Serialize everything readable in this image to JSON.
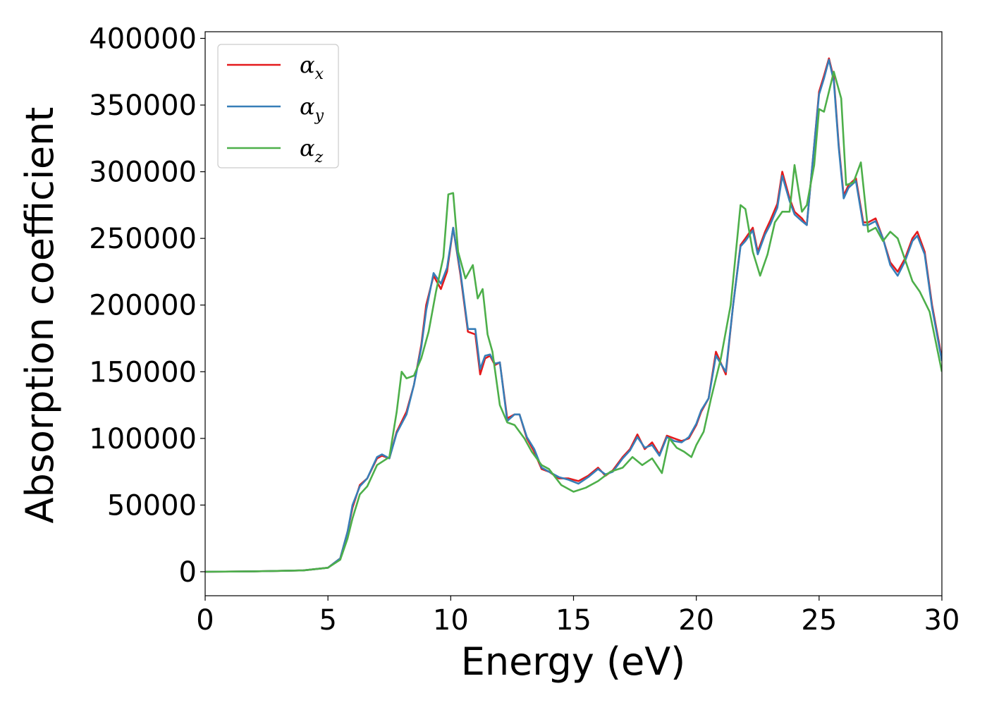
{
  "chart_data": {
    "type": "line",
    "title": "",
    "xlabel": "Energy (eV)",
    "ylabel": "Absorption coefficient",
    "xlim": [
      0,
      30
    ],
    "ylim": [
      -18000,
      405000
    ],
    "xticks": [
      0,
      5,
      10,
      15,
      20,
      25,
      30
    ],
    "xtick_labels": [
      "0",
      "5",
      "10",
      "15",
      "20",
      "25",
      "30"
    ],
    "yticks": [
      0,
      50000,
      100000,
      150000,
      200000,
      250000,
      300000,
      350000,
      400000
    ],
    "ytick_labels": [
      "0",
      "50000",
      "100000",
      "150000",
      "200000",
      "250000",
      "300000",
      "350000",
      "400000"
    ],
    "grid": false,
    "legend_position": "top-left",
    "series": [
      {
        "name": "α",
        "subscript": "x",
        "color": "#e41a1c",
        "x": [
          0,
          2,
          4,
          5,
          5.5,
          5.8,
          6,
          6.3,
          6.6,
          7,
          7.2,
          7.5,
          7.8,
          8.2,
          8.5,
          8.8,
          9.0,
          9.3,
          9.6,
          9.85,
          10.1,
          10.4,
          10.7,
          11.0,
          11.2,
          11.4,
          11.6,
          11.8,
          12.0,
          12.3,
          12.6,
          12.8,
          13.1,
          13.4,
          13.7,
          14.0,
          14.4,
          14.8,
          15.2,
          15.6,
          16.0,
          16.3,
          16.6,
          17.0,
          17.3,
          17.6,
          17.9,
          18.2,
          18.5,
          18.8,
          19.1,
          19.4,
          19.7,
          20.0,
          20.2,
          20.5,
          20.8,
          21.2,
          21.5,
          21.8,
          22.0,
          22.3,
          22.5,
          22.8,
          23.0,
          23.3,
          23.5,
          23.8,
          24.0,
          24.3,
          24.5,
          24.8,
          25.0,
          25.2,
          25.4,
          25.6,
          25.8,
          26.0,
          26.2,
          26.5,
          26.8,
          27.0,
          27.3,
          27.6,
          27.9,
          28.2,
          28.5,
          28.8,
          29.0,
          29.3,
          29.6,
          30.0
        ],
        "y": [
          0,
          300,
          1000,
          3000,
          10000,
          30000,
          48000,
          65000,
          70000,
          85000,
          87000,
          85000,
          105000,
          120000,
          140000,
          170000,
          200000,
          222000,
          212000,
          225000,
          258000,
          222000,
          180000,
          178000,
          148000,
          160000,
          162000,
          155000,
          157000,
          115000,
          118000,
          118000,
          100000,
          90000,
          77000,
          75000,
          70000,
          70000,
          68000,
          72000,
          78000,
          72000,
          76000,
          86000,
          92000,
          103000,
          92000,
          97000,
          88000,
          102000,
          100000,
          98000,
          100000,
          110000,
          120000,
          130000,
          165000,
          148000,
          200000,
          245000,
          250000,
          258000,
          240000,
          255000,
          263000,
          276000,
          300000,
          280000,
          270000,
          265000,
          260000,
          320000,
          360000,
          372000,
          385000,
          370000,
          320000,
          282000,
          290000,
          295000,
          262000,
          262000,
          265000,
          250000,
          232000,
          225000,
          235000,
          250000,
          255000,
          240000,
          200000,
          160000
        ]
      },
      {
        "name": "α",
        "subscript": "y",
        "color": "#377eb8",
        "x": [
          0,
          2,
          4,
          5,
          5.5,
          5.8,
          6,
          6.3,
          6.6,
          7,
          7.2,
          7.5,
          7.8,
          8.2,
          8.5,
          8.8,
          9.0,
          9.3,
          9.6,
          9.85,
          10.1,
          10.4,
          10.7,
          11.0,
          11.2,
          11.4,
          11.6,
          11.8,
          12.0,
          12.3,
          12.6,
          12.8,
          13.1,
          13.4,
          13.7,
          14.0,
          14.4,
          14.8,
          15.2,
          15.6,
          16.0,
          16.3,
          16.6,
          17.0,
          17.3,
          17.6,
          17.9,
          18.2,
          18.5,
          18.8,
          19.1,
          19.4,
          19.7,
          20.0,
          20.2,
          20.5,
          20.8,
          21.2,
          21.5,
          21.8,
          22.0,
          22.3,
          22.5,
          22.8,
          23.0,
          23.3,
          23.5,
          23.8,
          24.0,
          24.3,
          24.5,
          24.8,
          25.0,
          25.2,
          25.4,
          25.6,
          25.8,
          26.0,
          26.2,
          26.5,
          26.8,
          27.0,
          27.3,
          27.6,
          27.9,
          28.2,
          28.5,
          28.8,
          29.0,
          29.3,
          29.6,
          30.0
        ],
        "y": [
          0,
          300,
          1000,
          3000,
          10000,
          30000,
          50000,
          64000,
          70000,
          86000,
          88000,
          85000,
          104000,
          118000,
          140000,
          168000,
          196000,
          224000,
          216000,
          228000,
          258000,
          224000,
          182000,
          182000,
          152000,
          162000,
          163000,
          156000,
          157000,
          113000,
          118000,
          118000,
          101000,
          92000,
          78000,
          75000,
          71000,
          69000,
          66000,
          71000,
          77000,
          73000,
          75000,
          85000,
          91000,
          101000,
          93000,
          95000,
          87000,
          101000,
          98000,
          97000,
          101000,
          111000,
          121000,
          130000,
          162000,
          150000,
          200000,
          244000,
          248000,
          256000,
          238000,
          253000,
          260000,
          273000,
          297000,
          278000,
          268000,
          263000,
          260000,
          320000,
          358000,
          370000,
          384000,
          368000,
          318000,
          280000,
          288000,
          293000,
          260000,
          260000,
          263000,
          250000,
          230000,
          222000,
          233000,
          248000,
          252000,
          238000,
          198000,
          158000
        ]
      },
      {
        "name": "α",
        "subscript": "z",
        "color": "#4daf4a",
        "x": [
          0,
          2,
          4,
          5,
          5.5,
          5.8,
          6,
          6.3,
          6.6,
          7,
          7.5,
          7.8,
          8.0,
          8.2,
          8.5,
          8.8,
          9.1,
          9.4,
          9.7,
          9.9,
          10.1,
          10.3,
          10.6,
          10.9,
          11.1,
          11.3,
          11.5,
          11.7,
          12.0,
          12.3,
          12.6,
          13.0,
          13.3,
          13.7,
          14.0,
          14.5,
          15.0,
          15.5,
          16.0,
          16.5,
          17.0,
          17.4,
          17.8,
          18.2,
          18.6,
          18.9,
          19.2,
          19.5,
          19.8,
          20.0,
          20.3,
          20.6,
          21.0,
          21.4,
          21.8,
          22.0,
          22.3,
          22.6,
          22.9,
          23.2,
          23.5,
          23.8,
          24.0,
          24.3,
          24.5,
          24.8,
          25.0,
          25.2,
          25.4,
          25.6,
          25.9,
          26.1,
          26.4,
          26.7,
          27.0,
          27.3,
          27.6,
          27.9,
          28.2,
          28.5,
          28.8,
          29.1,
          29.5,
          30.0
        ],
        "y": [
          0,
          300,
          1000,
          3000,
          9000,
          25000,
          40000,
          58000,
          64000,
          80000,
          86000,
          120000,
          150000,
          145000,
          147000,
          160000,
          180000,
          210000,
          236000,
          283000,
          284000,
          240000,
          220000,
          230000,
          205000,
          212000,
          178000,
          165000,
          125000,
          112000,
          110000,
          100000,
          90000,
          80000,
          77000,
          65000,
          60000,
          63000,
          68000,
          75000,
          78000,
          86000,
          80000,
          85000,
          74000,
          100000,
          93000,
          90000,
          86000,
          95000,
          105000,
          130000,
          160000,
          200000,
          275000,
          272000,
          240000,
          222000,
          238000,
          262000,
          270000,
          270000,
          305000,
          270000,
          275000,
          305000,
          347000,
          345000,
          360000,
          375000,
          355000,
          290000,
          292000,
          307000,
          255000,
          258000,
          248000,
          255000,
          250000,
          234000,
          218000,
          210000,
          195000,
          150000
        ]
      }
    ]
  }
}
